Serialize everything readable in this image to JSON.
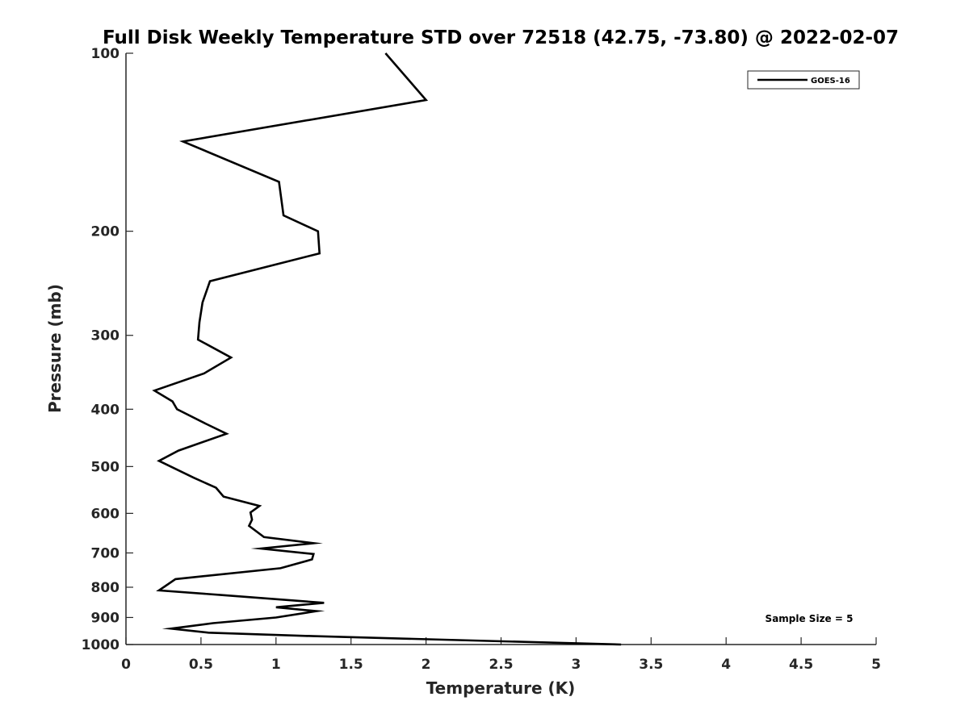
{
  "chart_data": {
    "type": "line",
    "title": "Full Disk Weekly Temperature STD over 72518 (42.75, -73.80) @ 2022-02-07",
    "xlabel": "Temperature (K)",
    "ylabel": "Pressure (mb)",
    "xlim": [
      0,
      5
    ],
    "ylim": [
      100,
      1000
    ],
    "yscale": "log",
    "yreversed": true,
    "grid": false,
    "legend_position": "top-right",
    "x_ticks": [
      "0",
      "0.5",
      "1",
      "1.5",
      "2",
      "2.5",
      "3",
      "3.5",
      "4",
      "4.5",
      "5"
    ],
    "y_ticks": [
      "100",
      "200",
      "300",
      "400",
      "500",
      "600",
      "700",
      "800",
      "900",
      "1000"
    ],
    "series": [
      {
        "name": "GOES-16",
        "color": "#000000",
        "points": [
          [
            1.73,
            100
          ],
          [
            2.0,
            120
          ],
          [
            0.38,
            141
          ],
          [
            1.02,
            165
          ],
          [
            1.05,
            188
          ],
          [
            1.28,
            200
          ],
          [
            1.29,
            218
          ],
          [
            0.56,
            243
          ],
          [
            0.51,
            264
          ],
          [
            0.49,
            285
          ],
          [
            0.48,
            305
          ],
          [
            0.7,
            327
          ],
          [
            0.52,
            348
          ],
          [
            0.19,
            372
          ],
          [
            0.31,
            388
          ],
          [
            0.34,
            400
          ],
          [
            0.53,
            423
          ],
          [
            0.67,
            440
          ],
          [
            0.35,
            470
          ],
          [
            0.22,
            489
          ],
          [
            0.45,
            522
          ],
          [
            0.6,
            543
          ],
          [
            0.65,
            562
          ],
          [
            0.89,
            583
          ],
          [
            0.83,
            598
          ],
          [
            0.84,
            615
          ],
          [
            0.82,
            630
          ],
          [
            0.92,
            658
          ],
          [
            1.25,
            674
          ],
          [
            0.9,
            688
          ],
          [
            1.25,
            703
          ],
          [
            1.24,
            718
          ],
          [
            1.03,
            743
          ],
          [
            0.33,
            775
          ],
          [
            0.22,
            810
          ],
          [
            0.65,
            825
          ],
          [
            1.32,
            850
          ],
          [
            1.0,
            865
          ],
          [
            1.27,
            878
          ],
          [
            1.0,
            900
          ],
          [
            0.58,
            920
          ],
          [
            0.3,
            940
          ],
          [
            0.55,
            955
          ],
          [
            1.25,
            968
          ],
          [
            3.3,
            1000
          ]
        ]
      }
    ],
    "annotation": "Sample Size = 5"
  }
}
